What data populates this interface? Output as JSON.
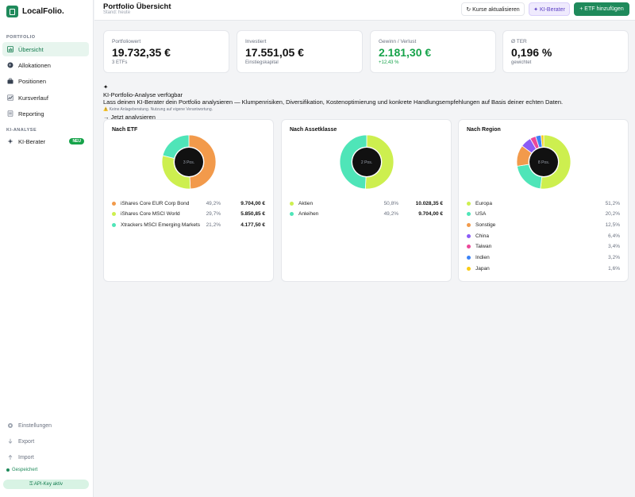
{
  "brand": {
    "name": "LocalFolio."
  },
  "sidebar": {
    "section_portfolio": "PORTFOLIO",
    "items": [
      {
        "label": "Übersicht",
        "icon": "bar-chart-icon"
      },
      {
        "label": "Allokationen",
        "icon": "globe-icon"
      },
      {
        "label": "Positionen",
        "icon": "briefcase-icon"
      },
      {
        "label": "Kursverlauf",
        "icon": "line-chart-icon"
      },
      {
        "label": "Reporting",
        "icon": "document-icon"
      }
    ],
    "section_ki": "KI-ANALYSE",
    "ki_item": {
      "label": "KI-Berater",
      "badge": "NEU"
    },
    "footer": [
      {
        "label": "Einstellungen",
        "icon": "gear-icon"
      },
      {
        "label": "Export",
        "icon": "download-icon"
      },
      {
        "label": "Import",
        "icon": "upload-icon"
      }
    ],
    "saved": "Gespeichert",
    "api": "⚿ API-Key aktiv"
  },
  "header": {
    "title": "Portfolio Übersicht",
    "subtitle": "Stand: heute",
    "btn_refresh": "↻ Kurse aktualisieren",
    "btn_ki": "✦ KI-Berater",
    "btn_add": "+ ETF hinzufügen"
  },
  "stats": [
    {
      "label": "Portfoliowert",
      "value": "19.732,35 €",
      "sub": "3 ETFs"
    },
    {
      "label": "Investiert",
      "value": "17.551,05 €",
      "sub": "Einstiegskapital"
    },
    {
      "label": "Gewinn / Verlust",
      "value": "2.181,30 €",
      "sub": "+12,43 %"
    },
    {
      "label": "Ø TER",
      "value": "0,196 %",
      "sub": "gewichtet"
    }
  ],
  "ki": {
    "icon": "✦",
    "title": "KI-Portfolio-Analyse verfügbar",
    "text": "Lass deinen KI-Berater dein Portfolio analysieren — Klumpenrisiken, Diversifikation, Kostenoptimierung und konkrete Handlungsempfehlungen auf Basis deiner echten Daten.",
    "disclaimer": "⚠️ Keine Anlageberatung. Nutzung auf eigene Verantwortung.",
    "cta": "→ Jetzt analysieren"
  },
  "panels": [
    {
      "title": "Nach ETF",
      "center": "3 Pos.",
      "items": [
        {
          "name": "iShares Core EUR Corp Bond",
          "pct": "49,2%",
          "value": "9.704,00 €",
          "share": 49.2,
          "color": "#f29a4b"
        },
        {
          "name": "iShares Core MSCI World",
          "pct": "29,7%",
          "value": "5.850,85 €",
          "share": 29.7,
          "color": "#cdef4f"
        },
        {
          "name": "Xtrackers MSCI Emerging Markets",
          "pct": "21,2%",
          "value": "4.177,50 €",
          "share": 21.2,
          "color": "#4fe5b8"
        }
      ]
    },
    {
      "title": "Nach Assetklasse",
      "center": "2 Pos.",
      "items": [
        {
          "name": "Aktien",
          "pct": "50,8%",
          "value": "10.028,35 €",
          "share": 50.8,
          "color": "#cdef4f"
        },
        {
          "name": "Anleihen",
          "pct": "49,2%",
          "value": "9.704,00 €",
          "share": 49.2,
          "color": "#4fe5b8"
        }
      ]
    },
    {
      "title": "Nach Region",
      "center": "8 Pos.",
      "items": [
        {
          "name": "Europa",
          "pct": "51,2%",
          "share": 51.2,
          "color": "#cdef4f"
        },
        {
          "name": "USA",
          "pct": "20,2%",
          "share": 20.2,
          "color": "#4fe5b8"
        },
        {
          "name": "Sonstige",
          "pct": "12,5%",
          "share": 12.5,
          "color": "#f29a4b"
        },
        {
          "name": "China",
          "pct": "6,4%",
          "share": 6.4,
          "color": "#8b5cf6"
        },
        {
          "name": "Taiwan",
          "pct": "3,4%",
          "share": 3.4,
          "color": "#ec4899"
        },
        {
          "name": "Indien",
          "pct": "3,2%",
          "share": 3.2,
          "color": "#3b82f6"
        },
        {
          "name": "Japan",
          "pct": "1,6%",
          "share": 1.6,
          "color": "#facc15"
        }
      ]
    }
  ]
}
